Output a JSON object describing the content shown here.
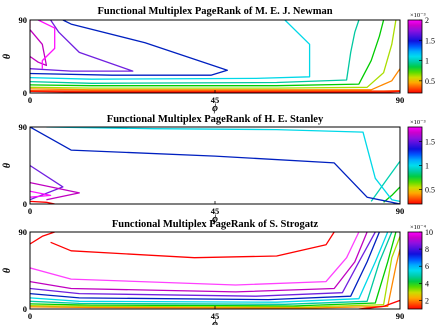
{
  "chart_data": [
    {
      "type": "contour",
      "title": "Functional Multiplex PageRank of M. E. J. Newman",
      "xlabel": "ϕ",
      "ylabel": "θ",
      "xlim": [
        0,
        90
      ],
      "ylim": [
        0,
        90
      ],
      "xticks": [
        "0",
        "45",
        "90"
      ],
      "yticks": [
        "0",
        "90"
      ],
      "colorbar": {
        "ticks": [
          "0.5",
          "1",
          "1.5",
          "2"
        ],
        "min": 0.2,
        "max": 2.0,
        "exponent": "×10⁻³"
      },
      "levels": [
        {
          "color": "#ff0000",
          "points": [
            [
              0,
              2
            ],
            [
              15,
              1
            ],
            [
              60,
              1
            ],
            [
              86,
              1
            ],
            [
              90,
              2
            ]
          ]
        },
        {
          "color": "#ff4400",
          "points": [
            [
              0,
              3
            ],
            [
              15,
              2.5
            ],
            [
              60,
              2.5
            ],
            [
              86,
              2.5
            ],
            [
              90,
              3
            ]
          ]
        },
        {
          "color": "#ff8800",
          "points": [
            [
              0,
              5
            ],
            [
              15,
              4
            ],
            [
              60,
              4
            ],
            [
              83,
              4
            ],
            [
              88,
              15
            ],
            [
              90,
              30
            ]
          ]
        },
        {
          "color": "#aadd00",
          "points": [
            [
              0,
              7
            ],
            [
              15,
              6
            ],
            [
              60,
              6
            ],
            [
              82,
              7
            ],
            [
              86,
              25
            ],
            [
              88,
              60
            ],
            [
              89,
              90
            ]
          ]
        },
        {
          "color": "#00cc00",
          "points": [
            [
              0,
              10
            ],
            [
              15,
              9
            ],
            [
              60,
              9
            ],
            [
              80,
              11
            ],
            [
              83,
              40
            ],
            [
              85,
              70
            ],
            [
              86,
              90
            ]
          ]
        },
        {
          "color": "#00c8a0",
          "points": [
            [
              0,
              14
            ],
            [
              15,
              12
            ],
            [
              60,
              13
            ],
            [
              77,
              16
            ],
            [
              78,
              50
            ],
            [
              79,
              75
            ],
            [
              80,
              90
            ]
          ]
        },
        {
          "color": "#00d8e8",
          "points": [
            [
              0,
              19
            ],
            [
              15,
              17
            ],
            [
              55,
              18
            ],
            [
              68,
              20
            ],
            [
              68,
              60
            ],
            [
              62,
              90
            ]
          ]
        },
        {
          "color": "#0020c0",
          "points": [
            [
              0,
              24
            ],
            [
              20,
              22
            ],
            [
              44,
              22
            ],
            [
              48,
              28
            ],
            [
              28,
              62
            ],
            [
              10,
              85
            ],
            [
              8,
              90
            ]
          ]
        },
        {
          "color": "#7020e0",
          "points": [
            [
              0,
              30
            ],
            [
              10,
              27
            ],
            [
              25,
              27
            ],
            [
              12,
              50
            ],
            [
              7,
              75
            ],
            [
              5,
              90
            ]
          ]
        },
        {
          "color": "#c000c0",
          "points": [
            [
              0,
              45
            ],
            [
              2,
              38
            ],
            [
              4,
              34
            ],
            [
              3,
              60
            ],
            [
              0,
              78
            ]
          ]
        },
        {
          "color": "#ff10ff",
          "points": [
            [
              2,
              90
            ],
            [
              6,
              80
            ],
            [
              6,
              55
            ],
            [
              3,
              40
            ],
            [
              3,
              30
            ]
          ]
        },
        {
          "color": "#ff50a0",
          "points": [
            [
              0,
              90
            ],
            [
              0,
              80
            ]
          ]
        }
      ]
    },
    {
      "type": "contour",
      "title": "Functional Multiplex PageRank of H. E. Stanley",
      "xlabel": "ϕ",
      "ylabel": "θ",
      "xlim": [
        0,
        90
      ],
      "ylim": [
        0,
        90
      ],
      "xticks": [
        "0",
        "45",
        "90"
      ],
      "yticks": [
        "0",
        "90"
      ],
      "colorbar": {
        "ticks": [
          "0.5",
          "1",
          "1.5"
        ],
        "min": 0.2,
        "max": 1.8,
        "exponent": "×10⁻³"
      },
      "levels": [
        {
          "color": "#00c800",
          "points": [
            [
              86,
              2
            ],
            [
              88,
              10
            ],
            [
              90,
              20
            ]
          ]
        },
        {
          "color": "#00d0b0",
          "points": [
            [
              83,
              3
            ],
            [
              87,
              30
            ],
            [
              90,
              50
            ]
          ]
        },
        {
          "color": "#00d8e8",
          "points": [
            [
              4,
              90
            ],
            [
              30,
              88
            ],
            [
              60,
              87
            ],
            [
              81,
              84
            ],
            [
              84,
              30
            ],
            [
              88,
              5
            ],
            [
              90,
              3
            ]
          ]
        },
        {
          "color": "#0020c0",
          "points": [
            [
              0,
              90
            ],
            [
              10,
              63
            ],
            [
              45,
              56
            ],
            [
              74,
              48
            ],
            [
              82,
              8
            ],
            [
              90,
              0
            ]
          ]
        },
        {
          "color": "#7020e0",
          "points": [
            [
              0,
              45
            ],
            [
              8,
              20
            ],
            [
              0,
              5
            ]
          ]
        },
        {
          "color": "#c000c0",
          "points": [
            [
              0,
              25
            ],
            [
              12,
              13
            ],
            [
              4,
              5
            ]
          ]
        },
        {
          "color": "#ff10ff",
          "points": [
            [
              0,
              15
            ],
            [
              5,
              10
            ],
            [
              0,
              8
            ]
          ]
        },
        {
          "color": "#ff0000",
          "points": [
            [
              0,
              3
            ],
            [
              4,
              2
            ],
            [
              6,
              0
            ]
          ]
        }
      ]
    },
    {
      "type": "contour",
      "title": "Functional Multiplex PageRank of S. Strogatz",
      "xlabel": "ϕ",
      "ylabel": "θ",
      "xlim": [
        0,
        90
      ],
      "ylim": [
        0,
        90
      ],
      "xticks": [
        "0",
        "45",
        "90"
      ],
      "yticks": [
        "0",
        "90"
      ],
      "colorbar": {
        "ticks": [
          "2",
          "4",
          "6",
          "8",
          "10"
        ],
        "min": 1,
        "max": 10,
        "exponent": "×10⁻⁴"
      },
      "levels": [
        {
          "color": "#ff0000",
          "points": [
            [
              5,
              78
            ],
            [
              10,
              68
            ],
            [
              40,
              60
            ],
            [
              60,
              62
            ],
            [
              72,
              75
            ],
            [
              74,
              90
            ]
          ]
        },
        {
          "color": "#ff0000",
          "points": [
            [
              0,
              76
            ],
            [
              3,
              85
            ],
            [
              6,
              90
            ]
          ]
        },
        {
          "color": "#ff40ff",
          "points": [
            [
              0,
              48
            ],
            [
              10,
              35
            ],
            [
              50,
              28
            ],
            [
              72,
              32
            ],
            [
              77,
              60
            ],
            [
              80,
              90
            ]
          ]
        },
        {
          "color": "#c000c0",
          "points": [
            [
              0,
              32
            ],
            [
              10,
              24
            ],
            [
              50,
              20
            ],
            [
              74,
              24
            ],
            [
              79,
              55
            ],
            [
              82,
              90
            ]
          ]
        },
        {
          "color": "#7020e0",
          "points": [
            [
              0,
              24
            ],
            [
              12,
              18
            ],
            [
              55,
              15
            ],
            [
              76,
              19
            ],
            [
              80,
              55
            ],
            [
              84,
              90
            ]
          ]
        },
        {
          "color": "#0020c0",
          "points": [
            [
              0,
              18
            ],
            [
              12,
              13
            ],
            [
              58,
              11
            ],
            [
              78,
              15
            ],
            [
              82,
              55
            ],
            [
              85,
              90
            ]
          ]
        },
        {
          "color": "#00d8e8",
          "points": [
            [
              0,
              13
            ],
            [
              12,
              9
            ],
            [
              60,
              8
            ],
            [
              80,
              12
            ],
            [
              84,
              55
            ],
            [
              87,
              90
            ]
          ]
        },
        {
          "color": "#00c8a0",
          "points": [
            [
              0,
              9
            ],
            [
              12,
              6.5
            ],
            [
              62,
              5.5
            ],
            [
              82,
              9
            ],
            [
              85,
              55
            ],
            [
              88,
              90
            ]
          ]
        },
        {
          "color": "#00cc00",
          "points": [
            [
              0,
              6
            ],
            [
              15,
              4.5
            ],
            [
              64,
              3.5
            ],
            [
              84,
              7
            ],
            [
              87,
              55
            ],
            [
              89,
              90
            ]
          ]
        },
        {
          "color": "#aadd00",
          "points": [
            [
              0,
              4
            ],
            [
              15,
              3
            ],
            [
              66,
              2.2
            ],
            [
              86,
              5
            ],
            [
              88,
              60
            ],
            [
              90,
              85
            ]
          ]
        },
        {
          "color": "#ff8800",
          "points": [
            [
              0,
              2.5
            ],
            [
              15,
              1.8
            ],
            [
              68,
              1.2
            ],
            [
              87,
              3
            ],
            [
              89,
              50
            ],
            [
              90,
              70
            ]
          ]
        },
        {
          "color": "#ff0000",
          "points": [
            [
              80,
              0
            ],
            [
              86,
              3
            ],
            [
              90,
              10
            ]
          ]
        }
      ]
    }
  ]
}
